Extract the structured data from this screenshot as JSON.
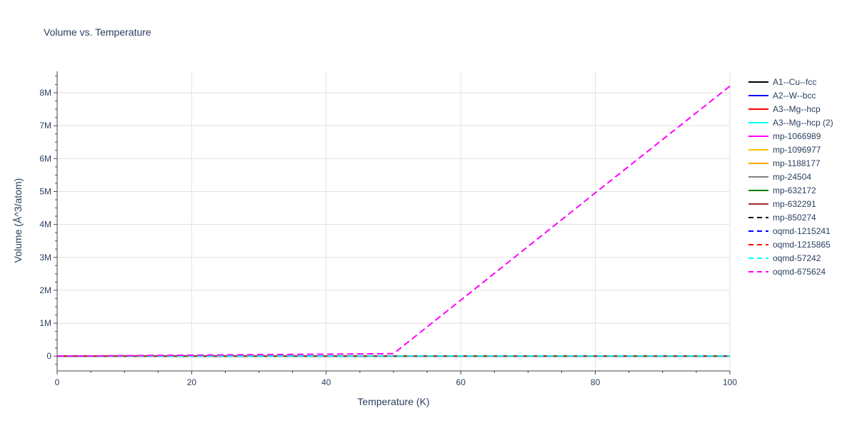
{
  "chart_data": {
    "type": "line",
    "title": "Volume vs. Temperature",
    "xlabel": "Temperature (K)",
    "ylabel": "Volume (Å^3/atom)",
    "xlim": [
      0,
      100
    ],
    "ylim": [
      -450000,
      8650000
    ],
    "x_ticks": [
      0,
      20,
      40,
      60,
      80,
      100
    ],
    "y_ticks": [
      {
        "value": 0,
        "label": "0"
      },
      {
        "value": 1000000,
        "label": "1M"
      },
      {
        "value": 2000000,
        "label": "2M"
      },
      {
        "value": 3000000,
        "label": "3M"
      },
      {
        "value": 4000000,
        "label": "4M"
      },
      {
        "value": 5000000,
        "label": "5M"
      },
      {
        "value": 6000000,
        "label": "6M"
      },
      {
        "value": 7000000,
        "label": "7M"
      },
      {
        "value": 8000000,
        "label": "8M"
      }
    ],
    "grid": true,
    "legend_position": "right",
    "series": [
      {
        "name": "A1--Cu--fcc",
        "color": "#000000",
        "dash": "solid",
        "x": [
          0,
          100
        ],
        "y": [
          12,
          12
        ]
      },
      {
        "name": "A2--W--bcc",
        "color": "#0000ff",
        "dash": "solid",
        "x": [
          0,
          100
        ],
        "y": [
          16,
          16
        ]
      },
      {
        "name": "A3--Mg--hcp",
        "color": "#ff0000",
        "dash": "solid",
        "x": [
          0,
          100
        ],
        "y": [
          23,
          23
        ]
      },
      {
        "name": "A3--Mg--hcp (2)",
        "color": "#00ffff",
        "dash": "solid",
        "x": [
          0,
          100
        ],
        "y": [
          23,
          23
        ]
      },
      {
        "name": "mp-1066989",
        "color": "#ff00ff",
        "dash": "solid",
        "x": [
          0,
          100
        ],
        "y": [
          20,
          20
        ]
      },
      {
        "name": "mp-1096977",
        "color": "#ffc000",
        "dash": "solid",
        "x": [
          0,
          100
        ],
        "y": [
          20,
          20
        ]
      },
      {
        "name": "mp-1188177",
        "color": "#ffa500",
        "dash": "solid",
        "x": [
          0,
          100
        ],
        "y": [
          20,
          20
        ]
      },
      {
        "name": "mp-24504",
        "color": "#808080",
        "dash": "solid",
        "x": [
          0,
          100
        ],
        "y": [
          20,
          20
        ]
      },
      {
        "name": "mp-632172",
        "color": "#008000",
        "dash": "solid",
        "x": [
          0,
          100
        ],
        "y": [
          20,
          20
        ]
      },
      {
        "name": "mp-632291",
        "color": "#a52a2a",
        "dash": "solid",
        "x": [
          0,
          100
        ],
        "y": [
          20,
          20
        ]
      },
      {
        "name": "mp-850274",
        "color": "#000000",
        "dash": "dash",
        "x": [
          0,
          100
        ],
        "y": [
          20,
          20
        ]
      },
      {
        "name": "oqmd-1215241",
        "color": "#0000ff",
        "dash": "dash",
        "x": [
          0,
          100
        ],
        "y": [
          20,
          20
        ]
      },
      {
        "name": "oqmd-1215865",
        "color": "#ff0000",
        "dash": "dash",
        "x": [
          0,
          100
        ],
        "y": [
          20,
          20
        ]
      },
      {
        "name": "oqmd-57242",
        "color": "#00ffff",
        "dash": "dash",
        "x": [
          0,
          100
        ],
        "y": [
          20,
          20
        ]
      },
      {
        "name": "oqmd-675624",
        "color": "#ff00ff",
        "dash": "dash",
        "x": [
          0,
          10,
          20,
          30,
          40,
          50,
          60,
          70,
          80,
          90,
          100
        ],
        "y": [
          0,
          15000,
          30000,
          45000,
          60000,
          75000,
          1700000,
          3330000,
          4960000,
          6580000,
          8200000
        ]
      }
    ]
  }
}
